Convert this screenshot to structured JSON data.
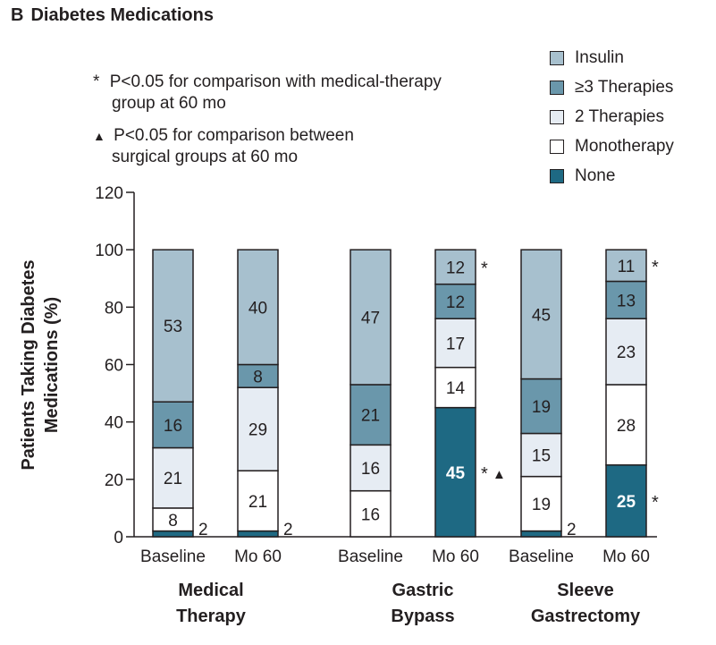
{
  "panel": {
    "letter": "B",
    "title": "Diabetes Medications"
  },
  "notes": {
    "star_symbol": "*",
    "star_line1": "P<0.05 for comparison with medical-therapy",
    "star_line2": "group at 60 mo",
    "triangle_symbol": "▲",
    "triangle_line1": "P<0.05 for comparison between",
    "triangle_line2": "surgical groups at 60 mo"
  },
  "legend": [
    {
      "label": "Insulin",
      "color": "#a7c0ce"
    },
    {
      "label": "≥3 Therapies",
      "color": "#6a97ab"
    },
    {
      "label": "2 Therapies",
      "color": "#e6ecf3"
    },
    {
      "label": "Monotherapy",
      "color": "#ffffff"
    },
    {
      "label": "None",
      "color": "#1e6983"
    }
  ],
  "chart_data": {
    "type": "bar",
    "stacked": true,
    "title": "Diabetes Medications",
    "ylabel_line1": "Patients Taking Diabetes",
    "ylabel_line2": "Medications (%)",
    "ylim": [
      0,
      120
    ],
    "yticks": [
      0,
      20,
      40,
      60,
      80,
      100,
      120
    ],
    "categories": [
      "Baseline",
      "Mo 60",
      "Baseline",
      "Mo 60",
      "Baseline",
      "Mo 60"
    ],
    "groups": [
      {
        "name_line1": "Medical",
        "name_line2": "Therapy"
      },
      {
        "name_line1": "Gastric",
        "name_line2": "Bypass"
      },
      {
        "name_line1": "Sleeve",
        "name_line2": "Gastrectomy"
      }
    ],
    "series": [
      {
        "name": "None",
        "values": [
          2,
          2,
          0,
          45,
          2,
          25
        ],
        "labels": [
          "2",
          "2",
          "",
          "45",
          "2",
          "25"
        ],
        "markers": [
          "",
          "",
          "",
          "*▲",
          "",
          "*"
        ]
      },
      {
        "name": "Monotherapy",
        "values": [
          8,
          21,
          16,
          14,
          19,
          28
        ],
        "labels": [
          "8",
          "21",
          "16",
          "14",
          "19",
          "28"
        ],
        "markers": [
          "",
          "",
          "",
          "",
          "",
          ""
        ]
      },
      {
        "name": "2 Therapies",
        "values": [
          21,
          29,
          16,
          17,
          15,
          23
        ],
        "labels": [
          "21",
          "29",
          "16",
          "17",
          "15",
          "23"
        ],
        "markers": [
          "",
          "",
          "",
          "",
          "",
          ""
        ]
      },
      {
        "name": "≥3 Therapies",
        "values": [
          16,
          8,
          21,
          12,
          19,
          13
        ],
        "labels": [
          "16",
          "8",
          "21",
          "12",
          "19",
          "13"
        ],
        "markers": [
          "",
          "",
          "",
          "",
          "",
          ""
        ]
      },
      {
        "name": "Insulin",
        "values": [
          53,
          40,
          47,
          12,
          45,
          11
        ],
        "labels": [
          "53",
          "40",
          "47",
          "12",
          "45",
          "11"
        ],
        "markers": [
          "",
          "",
          "",
          "*",
          "",
          "*"
        ]
      }
    ]
  }
}
